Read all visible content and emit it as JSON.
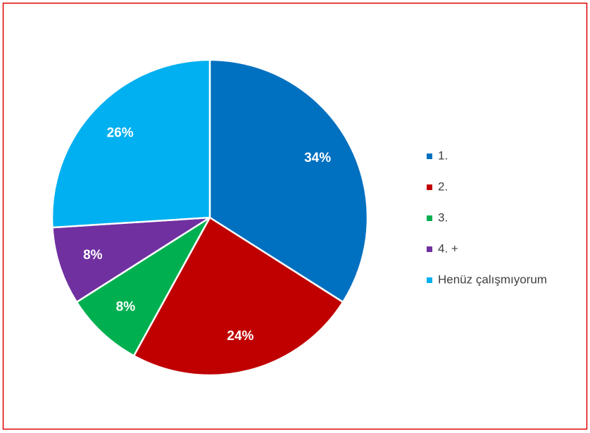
{
  "chart_data": {
    "type": "pie",
    "categories": [
      "1.",
      "2.",
      "3.",
      "4. +",
      "Henüz çalışmıyorum"
    ],
    "values": [
      34,
      24,
      8,
      8,
      26
    ],
    "value_labels": [
      "34%",
      "24%",
      "8%",
      "8%",
      "26%"
    ],
    "colors": [
      "#0070c0",
      "#c00000",
      "#00b050",
      "#7030a0",
      "#00b0f0"
    ],
    "legend": "right"
  }
}
